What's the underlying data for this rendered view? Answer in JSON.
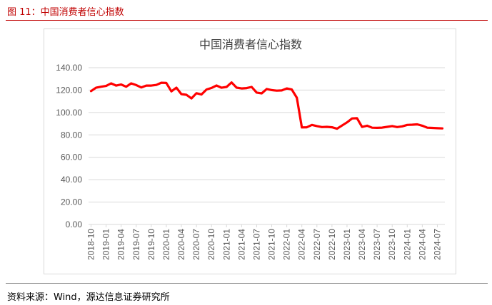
{
  "figure_title": "图 11：中国消费者信心指数",
  "source": "资料来源：Wind，源达信息证券研究所",
  "colors": {
    "accent": "#c00000",
    "series": "#ff0000",
    "grid": "#d9d9d9",
    "text": "#595959"
  },
  "chart_data": {
    "type": "line",
    "title": "中国消费者信心指数",
    "xlabel": "",
    "ylabel": "",
    "ylim": [
      0,
      140
    ],
    "yticks": [
      "0.00",
      "20.00",
      "40.00",
      "60.00",
      "80.00",
      "100.00",
      "120.00",
      "140.00"
    ],
    "grid": true,
    "legend": "none",
    "xtick_labels": [
      "2018-10",
      "2019-01",
      "2019-04",
      "2019-07",
      "2019-10",
      "2020-01",
      "2020-04",
      "2020-07",
      "2020-10",
      "2021-01",
      "2021-04",
      "2021-07",
      "2021-10",
      "2022-01",
      "2022-04",
      "2022-07",
      "2022-10",
      "2023-01",
      "2023-04",
      "2023-07",
      "2023-10",
      "2024-01",
      "2024-04",
      "2024-07"
    ],
    "x": [
      "2018-10",
      "2018-11",
      "2018-12",
      "2019-01",
      "2019-02",
      "2019-03",
      "2019-04",
      "2019-05",
      "2019-06",
      "2019-07",
      "2019-08",
      "2019-09",
      "2019-10",
      "2019-11",
      "2019-12",
      "2020-01",
      "2020-02",
      "2020-03",
      "2020-04",
      "2020-05",
      "2020-06",
      "2020-07",
      "2020-08",
      "2020-09",
      "2020-10",
      "2020-11",
      "2020-12",
      "2021-01",
      "2021-02",
      "2021-03",
      "2021-04",
      "2021-05",
      "2021-06",
      "2021-07",
      "2021-08",
      "2021-09",
      "2021-10",
      "2021-11",
      "2021-12",
      "2022-01",
      "2022-02",
      "2022-03",
      "2022-04",
      "2022-05",
      "2022-06",
      "2022-07",
      "2022-08",
      "2022-09",
      "2022-10",
      "2022-11",
      "2022-12",
      "2023-01",
      "2023-02",
      "2023-03",
      "2023-04",
      "2023-05",
      "2023-06",
      "2023-07",
      "2023-08",
      "2023-09",
      "2023-10",
      "2023-11",
      "2023-12",
      "2024-01",
      "2024-02",
      "2024-03",
      "2024-04",
      "2024-05",
      "2024-06",
      "2024-07",
      "2024-08"
    ],
    "series": [
      {
        "values": [
          119.1,
          122.1,
          123.0,
          123.7,
          126.0,
          124.0,
          125.0,
          123.0,
          126.0,
          124.5,
          122.4,
          124.0,
          124.0,
          124.6,
          126.6,
          126.4,
          118.9,
          122.2,
          116.4,
          115.8,
          112.6,
          117.2,
          116.1,
          120.5,
          121.9,
          124.1,
          122.1,
          122.8,
          126.8,
          122.2,
          121.5,
          121.8,
          122.8,
          117.8,
          117.1,
          121.0,
          120.0,
          119.5,
          119.7,
          121.5,
          120.5,
          113.2,
          86.7,
          86.8,
          88.9,
          87.9,
          87.0,
          87.2,
          86.8,
          85.5,
          88.3,
          91.2,
          94.7,
          94.9,
          87.1,
          88.2,
          86.4,
          86.3,
          86.5,
          87.2,
          87.9,
          87.0,
          87.6,
          88.9,
          89.1,
          89.4,
          88.2,
          86.4,
          86.2,
          86.0,
          85.8
        ]
      }
    ]
  }
}
